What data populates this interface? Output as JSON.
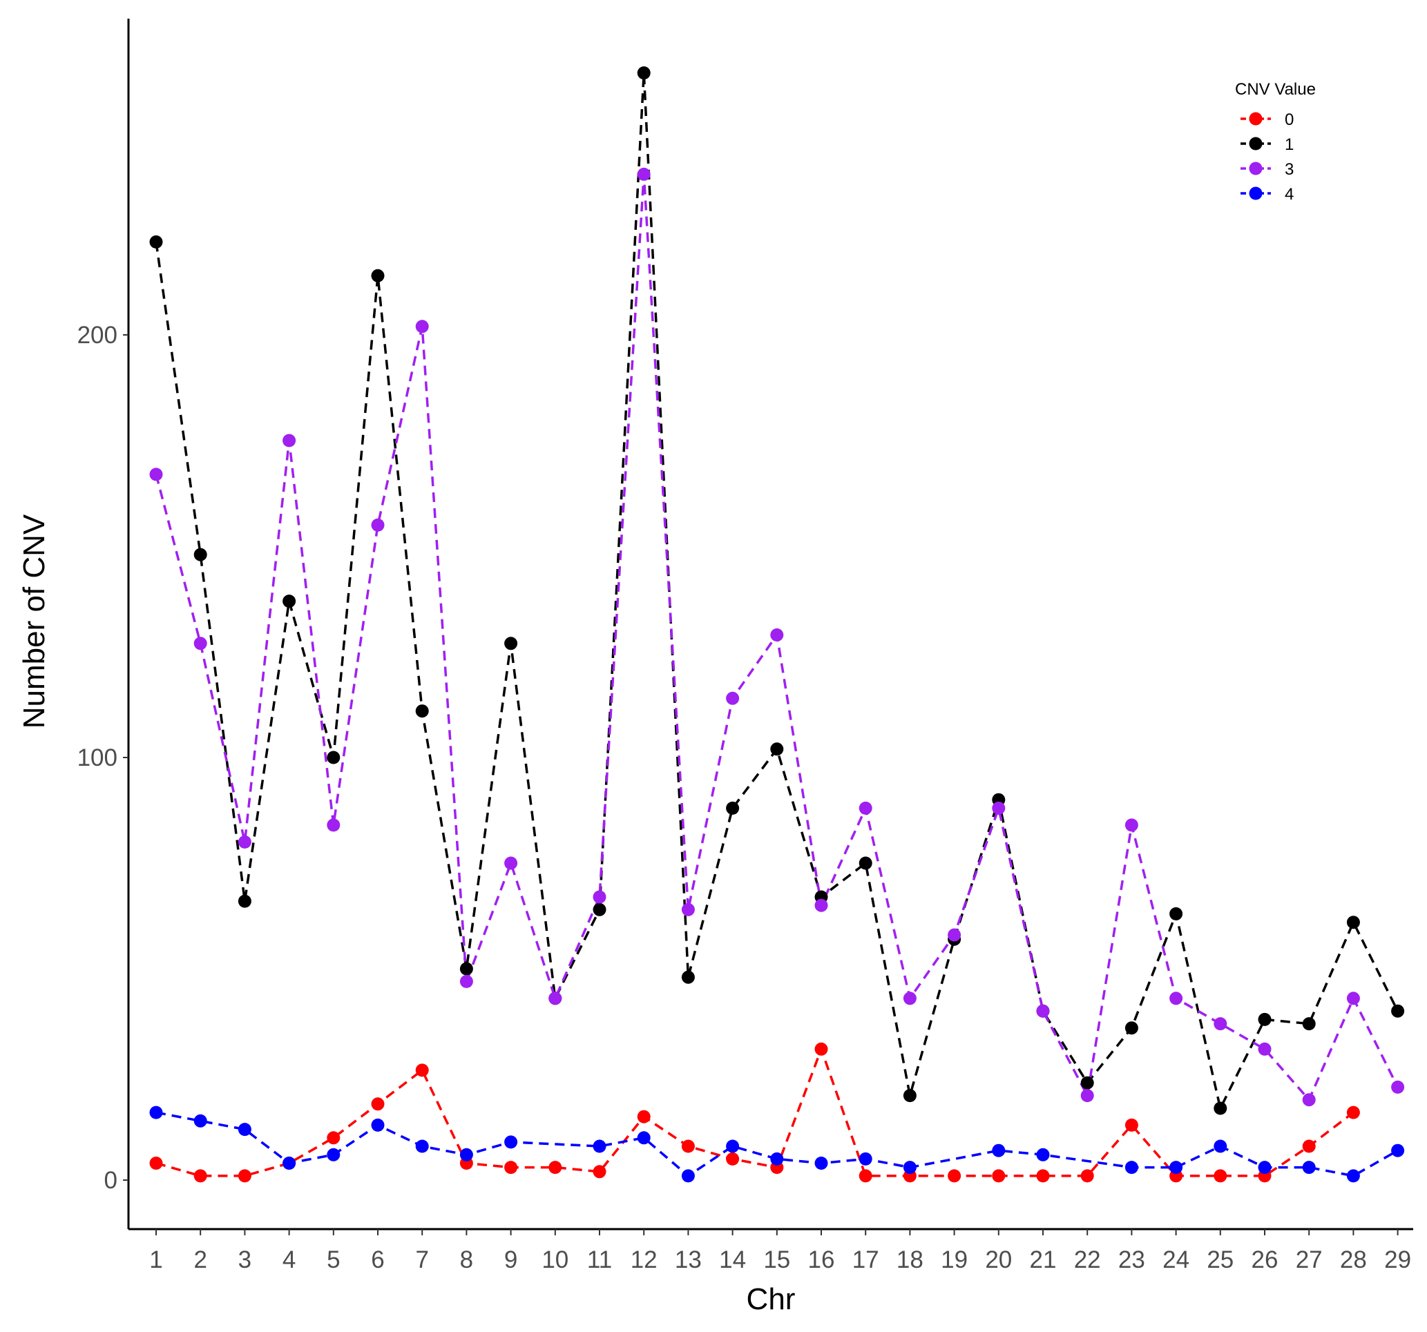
{
  "chart_data": {
    "type": "line",
    "xlabel": "Chr",
    "ylabel": "Number of CNV",
    "x": [
      1,
      2,
      3,
      4,
      5,
      6,
      7,
      8,
      9,
      10,
      11,
      12,
      13,
      14,
      15,
      16,
      17,
      18,
      19,
      20,
      21,
      22,
      23,
      24,
      25,
      26,
      27,
      28,
      29
    ],
    "x_tick_labels": [
      "1",
      "2",
      "3",
      "4",
      "5",
      "6",
      "7",
      "8",
      "9",
      "10",
      "11",
      "12",
      "13",
      "14",
      "15",
      "16",
      "17",
      "18",
      "19",
      "20",
      "21",
      "22",
      "23",
      "24",
      "25",
      "26",
      "27",
      "28",
      "29"
    ],
    "y_ticks": [
      0,
      100,
      200
    ],
    "y_tick_labels": [
      "0",
      "100",
      "200"
    ],
    "xlim": [
      0.4,
      29.6
    ],
    "ylim": [
      -12,
      262
    ],
    "grid": false,
    "line_style": "dashed",
    "legend": {
      "title": "CNV Value",
      "position": "top-right"
    },
    "series": [
      {
        "name": "0",
        "color": "#ff0000",
        "values": [
          4,
          1,
          1,
          4,
          10,
          18,
          26,
          4,
          3,
          3,
          2,
          15,
          8,
          5,
          3,
          31,
          1,
          1,
          1,
          1,
          1,
          1,
          13,
          1,
          1,
          1,
          8,
          16,
          null
        ]
      },
      {
        "name": "1",
        "color": "#000000",
        "values": [
          222,
          148,
          66,
          137,
          100,
          214,
          111,
          50,
          127,
          43,
          64,
          262,
          48,
          88,
          102,
          67,
          75,
          20,
          57,
          90,
          40,
          23,
          36,
          63,
          17,
          38,
          37,
          61,
          40
        ]
      },
      {
        "name": "3",
        "color": "#a020f0",
        "values": [
          167,
          127,
          80,
          175,
          84,
          155,
          202,
          47,
          75,
          43,
          67,
          238,
          64,
          114,
          129,
          65,
          88,
          43,
          58,
          88,
          40,
          20,
          84,
          43,
          37,
          31,
          19,
          43,
          22
        ]
      },
      {
        "name": "4",
        "color": "#0000ff",
        "values": [
          16,
          14,
          12,
          4,
          6,
          13,
          8,
          6,
          9,
          null,
          8,
          10,
          1,
          8,
          5,
          4,
          5,
          3,
          null,
          7,
          6,
          null,
          3,
          3,
          8,
          3,
          3,
          1,
          7
        ]
      }
    ]
  }
}
